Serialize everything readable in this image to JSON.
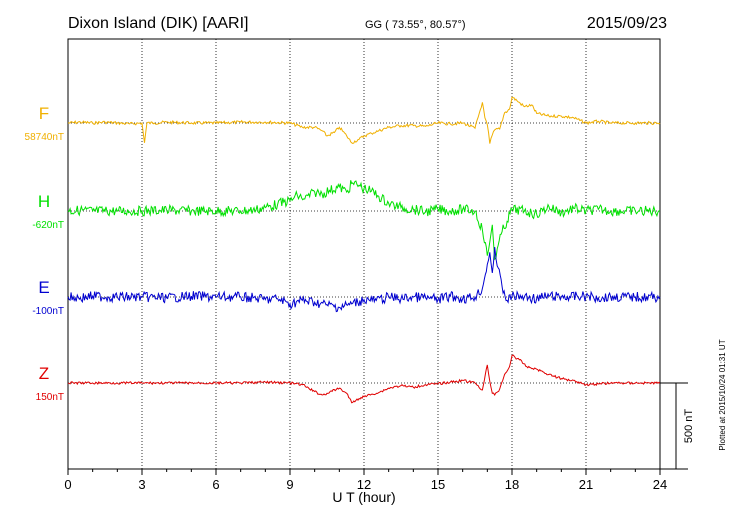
{
  "header": {
    "station": "Dixon Island (DIK)  [AARI]",
    "coords": "GG ( 73.55°,  80.57°)",
    "date": "2015/09/23"
  },
  "plotted_note": "Plotted at 2015/10/24 01:31  UT",
  "scale_label": "500 nT",
  "colors": {
    "F": "#f0b000",
    "H": "#00e000",
    "E": "#0000d0",
    "Z": "#e00000"
  },
  "chart_data": {
    "type": "line",
    "title": "Dixon Island (DIK)  [AARI]",
    "xlabel": "U T (hour)",
    "xlim": [
      0,
      24
    ],
    "xticks": [
      "0",
      "3",
      "6",
      "9",
      "12",
      "15",
      "18",
      "21",
      "24"
    ],
    "grid": true,
    "scale_bar_nT": 500,
    "series": [
      {
        "name": "F",
        "baseline_label": "58740nT",
        "x": [
          0,
          0.5,
          1,
          1.5,
          2,
          2.5,
          3,
          3.1,
          3.2,
          3.5,
          4,
          5,
          6,
          7,
          8,
          9,
          9.5,
          10,
          10.3,
          10.5,
          10.8,
          11,
          11.3,
          11.5,
          11.8,
          12,
          12.3,
          12.6,
          13,
          13.5,
          14,
          14.5,
          15,
          15.5,
          16,
          16.5,
          16.8,
          16.9,
          17,
          17.1,
          17.2,
          17.3,
          17.5,
          17.7,
          17.9,
          18,
          18.2,
          18.5,
          18.8,
          19,
          19.5,
          20,
          20.5,
          21,
          21.5,
          22,
          23,
          24
        ],
        "values": [
          0,
          5,
          0,
          5,
          0,
          -5,
          0,
          -115,
          0,
          0,
          5,
          0,
          0,
          5,
          5,
          0,
          -25,
          -25,
          -45,
          -75,
          -55,
          -25,
          -75,
          -115,
          -95,
          -75,
          -60,
          -45,
          -25,
          -15,
          -15,
          -20,
          0,
          -5,
          0,
          -30,
          120,
          30,
          -10,
          -120,
          -70,
          -40,
          -35,
          60,
          80,
          150,
          130,
          95,
          105,
          55,
          40,
          40,
          30,
          0,
          10,
          0,
          0,
          0
        ]
      },
      {
        "name": "H",
        "baseline_label": "-620nT",
        "x": [
          0,
          0.5,
          1,
          2,
          3,
          4,
          5,
          6,
          7,
          7.5,
          8,
          8.5,
          9,
          9.3,
          9.6,
          10,
          10.3,
          10.6,
          11,
          11.3,
          11.5,
          11.8,
          12,
          12.3,
          12.6,
          13,
          13.5,
          14,
          14.5,
          14.8,
          15,
          15.5,
          16,
          16.5,
          16.8,
          17,
          17.1,
          17.2,
          17.3,
          17.4,
          17.6,
          17.8,
          18,
          18.5,
          19,
          19.5,
          20,
          20.5,
          21,
          21.5,
          22,
          23,
          24
        ],
        "values": [
          0,
          5,
          0,
          0,
          0,
          5,
          0,
          0,
          0,
          5,
          20,
          40,
          60,
          90,
          70,
          110,
          100,
          120,
          140,
          110,
          160,
          150,
          130,
          115,
          85,
          45,
          20,
          10,
          -5,
          5,
          10,
          0,
          10,
          0,
          -110,
          -260,
          -180,
          -80,
          -280,
          -220,
          -120,
          -60,
          10,
          0,
          -20,
          25,
          -10,
          15,
          0,
          10,
          0,
          0,
          0
        ]
      },
      {
        "name": "E",
        "baseline_label": "-100nT",
        "x": [
          0,
          0.5,
          1,
          2,
          3,
          4,
          5,
          6,
          7,
          7.5,
          8,
          8.5,
          9,
          9.5,
          10,
          10.5,
          11,
          11.5,
          12,
          12.5,
          13,
          13.5,
          14,
          14.5,
          15,
          15.5,
          16,
          16.5,
          16.8,
          17,
          17.1,
          17.2,
          17.3,
          17.4,
          17.6,
          17.8,
          18,
          18.5,
          19,
          19.5,
          20,
          21,
          21.5,
          22,
          23,
          24
        ],
        "values": [
          0,
          -5,
          5,
          0,
          0,
          -5,
          5,
          0,
          0,
          -5,
          -15,
          -10,
          -40,
          -20,
          -30,
          -45,
          -60,
          -40,
          -15,
          -20,
          0,
          -10,
          0,
          -5,
          -15,
          5,
          -10,
          0,
          50,
          190,
          260,
          140,
          290,
          180,
          60,
          -20,
          5,
          0,
          -10,
          5,
          0,
          5,
          -5,
          0,
          0,
          0
        ]
      },
      {
        "name": "Z",
        "baseline_label": "150nT",
        "x": [
          0,
          1,
          2,
          3,
          4,
          5,
          6,
          7,
          8,
          9,
          9.5,
          10,
          10.3,
          10.5,
          11,
          11.3,
          11.5,
          11.8,
          12,
          12.3,
          12.6,
          13,
          13.5,
          14,
          14.5,
          15,
          15.5,
          16,
          16.5,
          16.8,
          17,
          17.1,
          17.2,
          17.3,
          17.5,
          17.7,
          17.9,
          18,
          18.3,
          18.6,
          19,
          19.5,
          20,
          20.5,
          21,
          22,
          23,
          24
        ],
        "values": [
          0,
          0,
          0,
          0,
          0,
          0,
          0,
          0,
          5,
          0,
          -10,
          -50,
          -70,
          -60,
          -30,
          -60,
          -115,
          -90,
          -80,
          -65,
          -55,
          -30,
          -15,
          -25,
          -10,
          -5,
          5,
          15,
          0,
          -40,
          105,
          10,
          -60,
          -70,
          -35,
          50,
          95,
          160,
          135,
          95,
          80,
          50,
          25,
          15,
          -10,
          0,
          0,
          0
        ]
      }
    ]
  }
}
